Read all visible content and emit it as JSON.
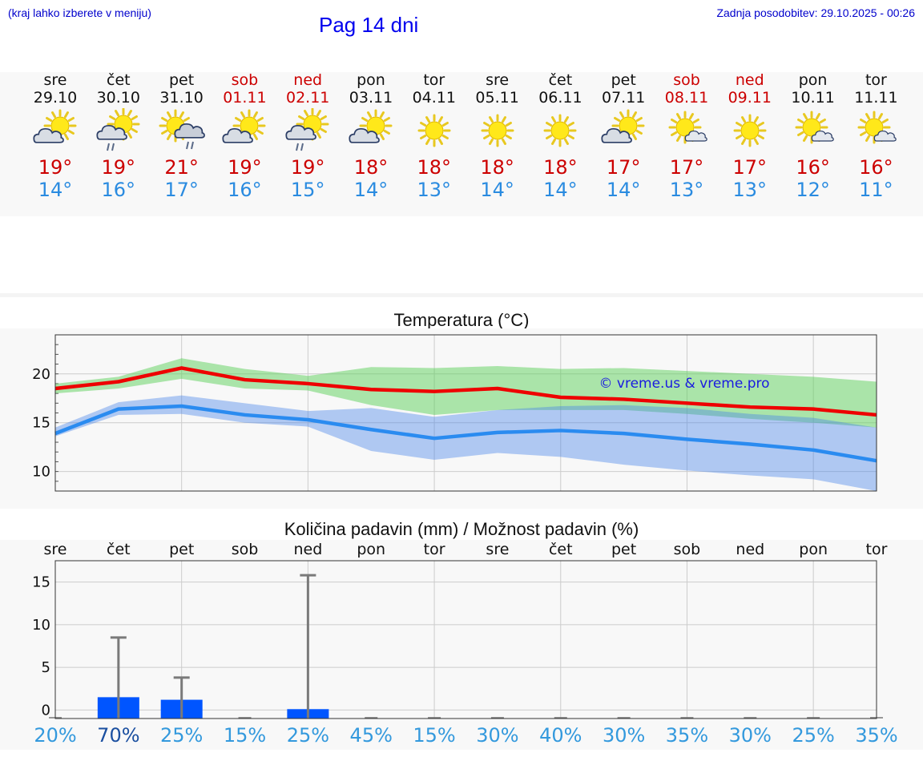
{
  "header": {
    "menu_hint": "(kraj lahko izberete v meniju)",
    "title": "Pag 14 dni",
    "last_update": "Zadnja posodobitev: 29.10.2025 - 00:26"
  },
  "colors": {
    "max": "#ee0000",
    "min": "#2a8bf0",
    "weekend": "#cc0000",
    "precip_bar": "#0055ff",
    "chance": "#3399dd"
  },
  "days": [
    {
      "name": "sre",
      "date": "29.10",
      "weekend": false,
      "icon": "sun-cloud-icon",
      "tmax": "19°",
      "tmin": "14°"
    },
    {
      "name": "čet",
      "date": "30.10",
      "weekend": false,
      "icon": "sun-cloud-rain-icon",
      "tmax": "19°",
      "tmin": "16°"
    },
    {
      "name": "pet",
      "date": "31.10",
      "weekend": false,
      "icon": "sun-rain-cloud-icon",
      "tmax": "21°",
      "tmin": "17°"
    },
    {
      "name": "sob",
      "date": "01.11",
      "weekend": true,
      "icon": "sun-cloud-icon",
      "tmax": "19°",
      "tmin": "16°"
    },
    {
      "name": "ned",
      "date": "02.11",
      "weekend": true,
      "icon": "sun-cloud-rain-icon",
      "tmax": "19°",
      "tmin": "15°"
    },
    {
      "name": "pon",
      "date": "03.11",
      "weekend": false,
      "icon": "sun-cloud-icon",
      "tmax": "18°",
      "tmin": "14°"
    },
    {
      "name": "tor",
      "date": "04.11",
      "weekend": false,
      "icon": "sun-icon",
      "tmax": "18°",
      "tmin": "13°"
    },
    {
      "name": "sre",
      "date": "05.11",
      "weekend": false,
      "icon": "sun-icon",
      "tmax": "18°",
      "tmin": "14°"
    },
    {
      "name": "čet",
      "date": "06.11",
      "weekend": false,
      "icon": "sun-icon",
      "tmax": "18°",
      "tmin": "14°"
    },
    {
      "name": "pet",
      "date": "07.11",
      "weekend": false,
      "icon": "sun-cloud-icon",
      "tmax": "17°",
      "tmin": "14°"
    },
    {
      "name": "sob",
      "date": "08.11",
      "weekend": true,
      "icon": "sun-small-cloud-icon",
      "tmax": "17°",
      "tmin": "13°"
    },
    {
      "name": "ned",
      "date": "09.11",
      "weekend": true,
      "icon": "sun-icon",
      "tmax": "17°",
      "tmin": "13°"
    },
    {
      "name": "pon",
      "date": "10.11",
      "weekend": false,
      "icon": "sun-small-cloud-icon",
      "tmax": "16°",
      "tmin": "12°"
    },
    {
      "name": "tor",
      "date": "11.11",
      "weekend": false,
      "icon": "sun-small-cloud-icon",
      "tmax": "16°",
      "tmin": "11°"
    }
  ],
  "chart_data": [
    {
      "type": "line",
      "title": "Temperatura (°C)",
      "watermark": "© vreme.us & vreme.pro",
      "ylim": [
        8,
        24
      ],
      "yticks": [
        10,
        15,
        20
      ],
      "grid": true,
      "x_days": [
        0,
        1,
        2,
        3,
        4,
        5,
        6,
        7,
        8,
        9,
        10,
        11,
        12,
        13
      ],
      "series": [
        {
          "name": "max",
          "values": [
            18.5,
            19.2,
            20.6,
            19.4,
            19.0,
            18.4,
            18.2,
            18.5,
            17.6,
            17.4,
            17.0,
            16.6,
            16.4,
            15.8
          ],
          "band_low": [
            18.0,
            18.5,
            19.5,
            18.5,
            18.3,
            16.8,
            15.8,
            16.3,
            16.3,
            16.3,
            15.9,
            15.4,
            15.0,
            14.5
          ],
          "band_high": [
            19.0,
            19.7,
            21.6,
            20.5,
            19.8,
            20.7,
            20.6,
            20.8,
            20.5,
            20.6,
            20.3,
            20.0,
            19.7,
            19.2
          ]
        },
        {
          "name": "min",
          "values": [
            13.9,
            16.4,
            16.7,
            15.8,
            15.3,
            14.3,
            13.4,
            14.0,
            14.2,
            13.9,
            13.3,
            12.8,
            12.2,
            11.1
          ],
          "band_low": [
            13.6,
            15.8,
            15.9,
            15.0,
            14.6,
            12.1,
            11.2,
            11.9,
            11.5,
            10.7,
            10.1,
            9.6,
            9.2,
            8.0
          ],
          "band_high": [
            14.5,
            17.1,
            17.8,
            17.0,
            16.2,
            16.5,
            15.6,
            16.3,
            16.7,
            16.8,
            16.5,
            15.9,
            15.5,
            14.5
          ]
        }
      ]
    },
    {
      "type": "bar",
      "title": "Količina padavin (mm) / Možnost padavin (%)",
      "categories": [
        "sre",
        "čet",
        "pet",
        "sob",
        "ned",
        "pon",
        "tor",
        "sre",
        "čet",
        "pet",
        "sob",
        "ned",
        "pon",
        "tor"
      ],
      "values": [
        0,
        1.5,
        1.2,
        0,
        0.1,
        0,
        0,
        0,
        0,
        0,
        0,
        0,
        0,
        0
      ],
      "error_max": [
        0,
        8.5,
        3.8,
        0,
        15.8,
        0,
        0,
        0,
        0,
        0,
        0,
        0,
        0,
        0
      ],
      "chance": [
        "20%",
        "70%",
        "25%",
        "15%",
        "25%",
        "45%",
        "15%",
        "30%",
        "40%",
        "30%",
        "35%",
        "30%",
        "25%",
        "35%"
      ],
      "ylim": [
        -1,
        17.5
      ],
      "yticks": [
        0,
        5,
        10,
        15
      ]
    }
  ]
}
